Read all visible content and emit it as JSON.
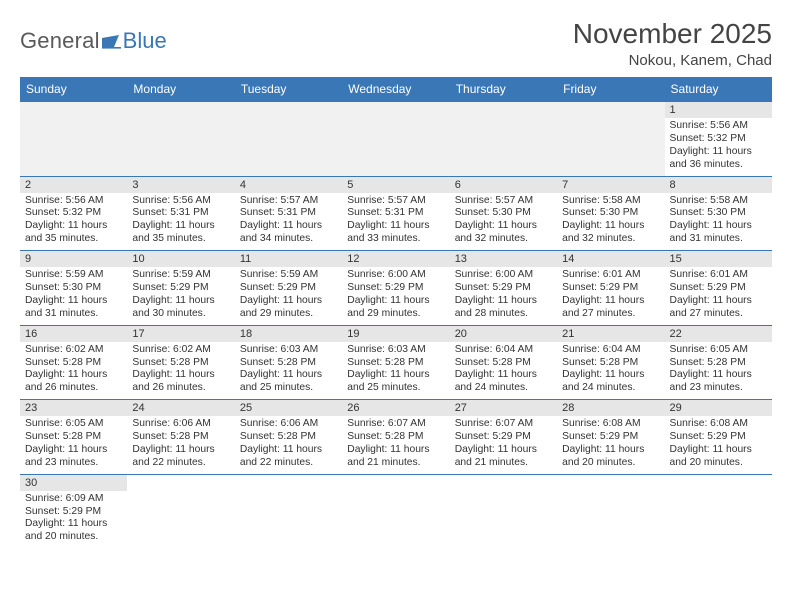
{
  "logo": {
    "general": "General",
    "blue": "Blue"
  },
  "title": "November 2025",
  "location": "Nokou, Kanem, Chad",
  "colors": {
    "header_bg": "#3a77b7",
    "header_text": "#ffffff",
    "daynum_bg": "#e6e6e6",
    "row_border": "#3a77b7",
    "title_color": "#444444",
    "logo_gray": "#5a5a5a",
    "logo_blue": "#3a77b7"
  },
  "weekdays": [
    "Sunday",
    "Monday",
    "Tuesday",
    "Wednesday",
    "Thursday",
    "Friday",
    "Saturday"
  ],
  "weeks": [
    [
      null,
      null,
      null,
      null,
      null,
      null,
      {
        "n": "1",
        "sr": "5:56 AM",
        "ss": "5:32 PM",
        "dl": "11 hours and 36 minutes."
      }
    ],
    [
      {
        "n": "2",
        "sr": "5:56 AM",
        "ss": "5:32 PM",
        "dl": "11 hours and 35 minutes."
      },
      {
        "n": "3",
        "sr": "5:56 AM",
        "ss": "5:31 PM",
        "dl": "11 hours and 35 minutes."
      },
      {
        "n": "4",
        "sr": "5:57 AM",
        "ss": "5:31 PM",
        "dl": "11 hours and 34 minutes."
      },
      {
        "n": "5",
        "sr": "5:57 AM",
        "ss": "5:31 PM",
        "dl": "11 hours and 33 minutes."
      },
      {
        "n": "6",
        "sr": "5:57 AM",
        "ss": "5:30 PM",
        "dl": "11 hours and 32 minutes."
      },
      {
        "n": "7",
        "sr": "5:58 AM",
        "ss": "5:30 PM",
        "dl": "11 hours and 32 minutes."
      },
      {
        "n": "8",
        "sr": "5:58 AM",
        "ss": "5:30 PM",
        "dl": "11 hours and 31 minutes."
      }
    ],
    [
      {
        "n": "9",
        "sr": "5:59 AM",
        "ss": "5:30 PM",
        "dl": "11 hours and 31 minutes."
      },
      {
        "n": "10",
        "sr": "5:59 AM",
        "ss": "5:29 PM",
        "dl": "11 hours and 30 minutes."
      },
      {
        "n": "11",
        "sr": "5:59 AM",
        "ss": "5:29 PM",
        "dl": "11 hours and 29 minutes."
      },
      {
        "n": "12",
        "sr": "6:00 AM",
        "ss": "5:29 PM",
        "dl": "11 hours and 29 minutes."
      },
      {
        "n": "13",
        "sr": "6:00 AM",
        "ss": "5:29 PM",
        "dl": "11 hours and 28 minutes."
      },
      {
        "n": "14",
        "sr": "6:01 AM",
        "ss": "5:29 PM",
        "dl": "11 hours and 27 minutes."
      },
      {
        "n": "15",
        "sr": "6:01 AM",
        "ss": "5:29 PM",
        "dl": "11 hours and 27 minutes."
      }
    ],
    [
      {
        "n": "16",
        "sr": "6:02 AM",
        "ss": "5:28 PM",
        "dl": "11 hours and 26 minutes."
      },
      {
        "n": "17",
        "sr": "6:02 AM",
        "ss": "5:28 PM",
        "dl": "11 hours and 26 minutes."
      },
      {
        "n": "18",
        "sr": "6:03 AM",
        "ss": "5:28 PM",
        "dl": "11 hours and 25 minutes."
      },
      {
        "n": "19",
        "sr": "6:03 AM",
        "ss": "5:28 PM",
        "dl": "11 hours and 25 minutes."
      },
      {
        "n": "20",
        "sr": "6:04 AM",
        "ss": "5:28 PM",
        "dl": "11 hours and 24 minutes."
      },
      {
        "n": "21",
        "sr": "6:04 AM",
        "ss": "5:28 PM",
        "dl": "11 hours and 24 minutes."
      },
      {
        "n": "22",
        "sr": "6:05 AM",
        "ss": "5:28 PM",
        "dl": "11 hours and 23 minutes."
      }
    ],
    [
      {
        "n": "23",
        "sr": "6:05 AM",
        "ss": "5:28 PM",
        "dl": "11 hours and 23 minutes."
      },
      {
        "n": "24",
        "sr": "6:06 AM",
        "ss": "5:28 PM",
        "dl": "11 hours and 22 minutes."
      },
      {
        "n": "25",
        "sr": "6:06 AM",
        "ss": "5:28 PM",
        "dl": "11 hours and 22 minutes."
      },
      {
        "n": "26",
        "sr": "6:07 AM",
        "ss": "5:28 PM",
        "dl": "11 hours and 21 minutes."
      },
      {
        "n": "27",
        "sr": "6:07 AM",
        "ss": "5:29 PM",
        "dl": "11 hours and 21 minutes."
      },
      {
        "n": "28",
        "sr": "6:08 AM",
        "ss": "5:29 PM",
        "dl": "11 hours and 20 minutes."
      },
      {
        "n": "29",
        "sr": "6:08 AM",
        "ss": "5:29 PM",
        "dl": "11 hours and 20 minutes."
      }
    ],
    [
      {
        "n": "30",
        "sr": "6:09 AM",
        "ss": "5:29 PM",
        "dl": "11 hours and 20 minutes."
      },
      null,
      null,
      null,
      null,
      null,
      null
    ]
  ],
  "labels": {
    "sunrise": "Sunrise:",
    "sunset": "Sunset:",
    "daylight": "Daylight:"
  }
}
